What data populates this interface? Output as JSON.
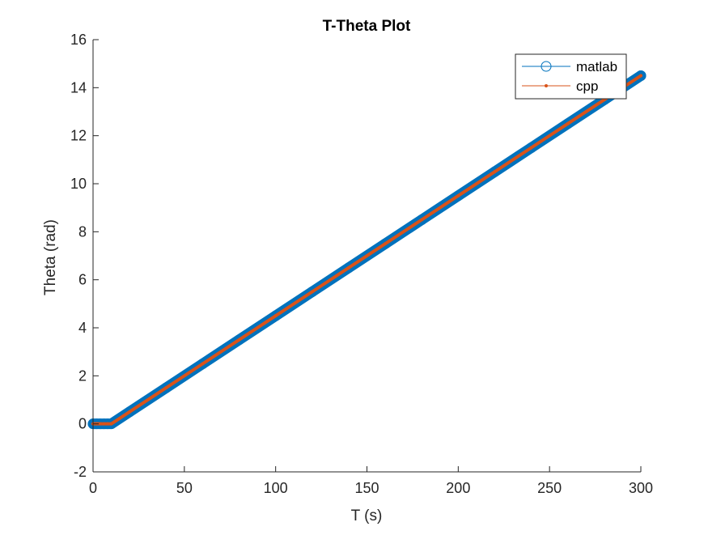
{
  "chart_data": {
    "type": "line",
    "title": "T-Theta Plot",
    "xlabel": "T (s)",
    "ylabel": "Theta (rad)",
    "xlim": [
      0,
      300
    ],
    "ylim": [
      -2,
      16
    ],
    "xticks": [
      0,
      50,
      100,
      150,
      200,
      250,
      300
    ],
    "yticks": [
      -2,
      0,
      2,
      4,
      6,
      8,
      10,
      12,
      14,
      16
    ],
    "grid": false,
    "legend_position": "top-right",
    "x": [
      0,
      2,
      4,
      6,
      8,
      10,
      20,
      40,
      60,
      80,
      100,
      120,
      140,
      160,
      180,
      200,
      220,
      240,
      260,
      280,
      300
    ],
    "series": [
      {
        "name": "matlab",
        "color": "#0072BD",
        "marker": "circle",
        "values": [
          0,
          0,
          0,
          0,
          0,
          0,
          0.5,
          1.5,
          2.5,
          3.5,
          4.5,
          5.5,
          6.5,
          7.5,
          8.5,
          9.5,
          10.5,
          11.5,
          12.5,
          13.5,
          14.5
        ]
      },
      {
        "name": "cpp",
        "color": "#D95319",
        "marker": "point",
        "values": [
          0,
          0,
          0,
          0,
          0,
          0,
          0.5,
          1.5,
          2.5,
          3.5,
          4.5,
          5.5,
          6.5,
          7.5,
          8.5,
          9.5,
          10.5,
          11.5,
          12.5,
          13.5,
          14.5
        ]
      }
    ]
  }
}
